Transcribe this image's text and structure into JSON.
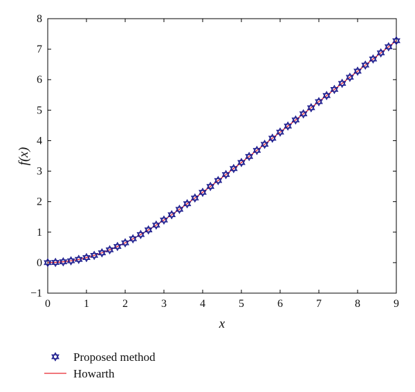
{
  "chart_data": {
    "type": "line",
    "xlabel": "x",
    "ylabel": "f(x)",
    "xlim": [
      0,
      9
    ],
    "ylim": [
      -1,
      8
    ],
    "xticks": [
      0,
      1,
      2,
      3,
      4,
      5,
      6,
      7,
      8,
      9
    ],
    "yticks": [
      -1,
      0,
      1,
      2,
      3,
      4,
      5,
      6,
      7,
      8
    ],
    "grid": false,
    "legend_position": "below plot, left",
    "series": [
      {
        "name": "Proposed method",
        "style": "markers",
        "marker": "hexagram",
        "color": "#1a1a8c",
        "x": [
          0,
          0.2,
          0.4,
          0.6,
          0.8,
          1.0,
          1.2,
          1.4,
          1.6,
          1.8,
          2.0,
          2.2,
          2.4,
          2.6,
          2.8,
          3.0,
          3.2,
          3.4,
          3.6,
          3.8,
          4.0,
          4.2,
          4.4,
          4.6,
          4.8,
          5.0,
          5.2,
          5.4,
          5.6,
          5.8,
          6.0,
          6.2,
          6.4,
          6.6,
          6.8,
          7.0,
          7.2,
          7.4,
          7.6,
          7.8,
          8.0,
          8.2,
          8.4,
          8.6,
          8.8,
          9.0
        ],
        "y": [
          0.0,
          0.007,
          0.027,
          0.06,
          0.106,
          0.166,
          0.238,
          0.322,
          0.42,
          0.53,
          0.65,
          0.782,
          0.922,
          1.073,
          1.231,
          1.397,
          1.57,
          1.748,
          1.932,
          2.12,
          2.306,
          2.498,
          2.692,
          2.888,
          3.085,
          3.283,
          3.482,
          3.681,
          3.88,
          4.08,
          4.28,
          4.479,
          4.679,
          4.879,
          5.079,
          5.279,
          5.479,
          5.679,
          5.878,
          6.078,
          6.278,
          6.478,
          6.678,
          6.878,
          7.078,
          7.278
        ]
      },
      {
        "name": "Howarth",
        "style": "line",
        "color": "#e8262e",
        "x": [
          0,
          0.2,
          0.4,
          0.6,
          0.8,
          1.0,
          1.2,
          1.4,
          1.6,
          1.8,
          2.0,
          2.2,
          2.4,
          2.6,
          2.8,
          3.0,
          3.2,
          3.4,
          3.6,
          3.8,
          4.0,
          4.2,
          4.4,
          4.6,
          4.8,
          5.0,
          5.2,
          5.4,
          5.6,
          5.8,
          6.0,
          6.2,
          6.4,
          6.6,
          6.8,
          7.0,
          7.2,
          7.4,
          7.6,
          7.8,
          8.0,
          8.2,
          8.4,
          8.6,
          8.8,
          9.0
        ],
        "y": [
          0.0,
          0.007,
          0.027,
          0.06,
          0.106,
          0.166,
          0.238,
          0.322,
          0.42,
          0.53,
          0.65,
          0.782,
          0.922,
          1.073,
          1.231,
          1.397,
          1.57,
          1.748,
          1.932,
          2.12,
          2.306,
          2.498,
          2.692,
          2.888,
          3.085,
          3.283,
          3.482,
          3.681,
          3.88,
          4.08,
          4.28,
          4.479,
          4.679,
          4.879,
          5.079,
          5.279,
          5.479,
          5.679,
          5.878,
          6.078,
          6.278,
          6.478,
          6.678,
          6.878,
          7.078,
          7.278
        ]
      }
    ]
  }
}
